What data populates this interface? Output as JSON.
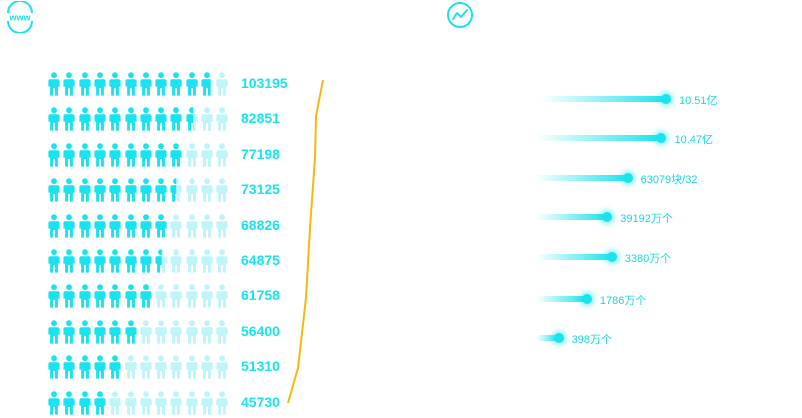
{
  "colors": {
    "accent": "#19e3ee",
    "accent_faded": "#bff5f8",
    "trend_line": "#f5b914"
  },
  "icons": {
    "left_header_icon": "globe-www-icon",
    "right_header_icon": "trend-chart-icon",
    "people_icon": "person-icon"
  },
  "people_panel": {
    "icons_per_row": 12,
    "rows": [
      {
        "value": "103195",
        "filled_fraction": 0.9
      },
      {
        "value": "82851",
        "filled_fraction": 0.8
      },
      {
        "value": "77198",
        "filled_fraction": 0.75
      },
      {
        "value": "73125",
        "filled_fraction": 0.71
      },
      {
        "value": "68826",
        "filled_fraction": 0.67
      },
      {
        "value": "64875",
        "filled_fraction": 0.63
      },
      {
        "value": "61758",
        "filled_fraction": 0.58
      },
      {
        "value": "56400",
        "filled_fraction": 0.5
      },
      {
        "value": "51310",
        "filled_fraction": 0.42
      },
      {
        "value": "45730",
        "filled_fraction": 0.33
      }
    ]
  },
  "bar_panel": {
    "rows": [
      {
        "label": "10.51亿",
        "level": 1.0
      },
      {
        "label": "10.47亿",
        "level": 0.96
      },
      {
        "label": "63079块/32",
        "level": 0.66
      },
      {
        "label": "39192万个",
        "level": 0.48
      },
      {
        "label": "3380万个",
        "level": 0.52
      },
      {
        "label": "1786万个",
        "level": 0.3
      },
      {
        "label": "398万个",
        "level": 0.05
      }
    ]
  }
}
